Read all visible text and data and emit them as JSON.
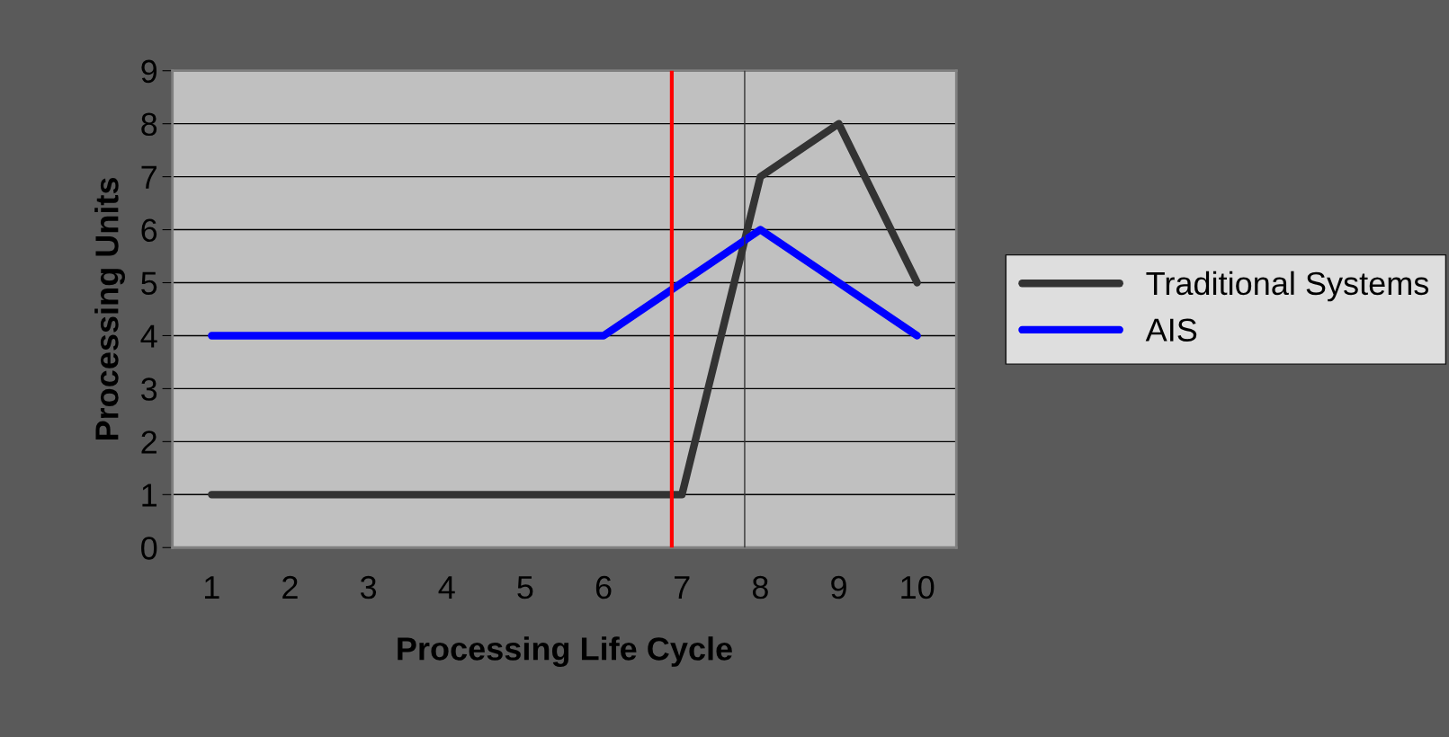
{
  "chart_data": {
    "type": "line",
    "xlabel": "Processing Life Cycle",
    "ylabel": "Processing Units",
    "x": [
      1,
      2,
      3,
      4,
      5,
      6,
      7,
      8,
      9,
      10
    ],
    "xlim": [
      0.5,
      10.5
    ],
    "xticks": [
      1,
      2,
      3,
      4,
      5,
      6,
      7,
      8,
      9,
      10
    ],
    "ylim": [
      0,
      9
    ],
    "yticks": [
      0,
      1,
      2,
      3,
      4,
      5,
      6,
      7,
      8,
      9
    ],
    "series": [
      {
        "name": "Traditional Systems",
        "color": "#333333",
        "values": [
          1,
          1,
          1,
          1,
          1,
          1,
          1,
          7,
          8,
          5
        ]
      },
      {
        "name": "AIS",
        "color": "#0000ff",
        "values": [
          4,
          4,
          4,
          4,
          4,
          4,
          5,
          6,
          5,
          4
        ]
      }
    ],
    "ref_lines": [
      {
        "axis": "x",
        "value": 6.87,
        "color": "#ff0000",
        "line_style": "solid"
      },
      {
        "axis": "x",
        "value": 7.8,
        "color": "#333333",
        "line_style": "solid"
      }
    ],
    "grid": "y",
    "legend": "right",
    "marker": "none",
    "line_style": "solid"
  }
}
